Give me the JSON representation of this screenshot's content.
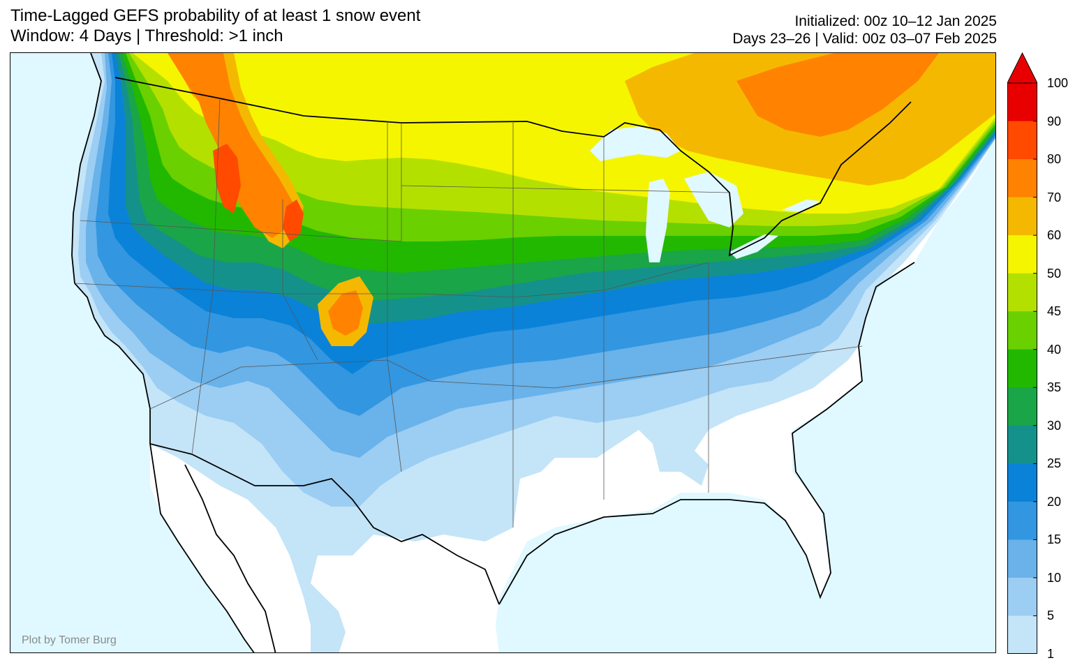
{
  "title": {
    "line1": "Time-Lagged GEFS probability of at least 1 snow event",
    "line2": "Window: 4 Days | Threshold: >1 inch"
  },
  "info": {
    "line1": "Initialized: 00z 10–12 Jan 2025",
    "line2": "Days 23–26 | Valid: 00z 03–07 Feb 2025"
  },
  "credit": "Plot by Tomer Burg",
  "legend": {
    "ticks": [
      "100",
      "90",
      "80",
      "70",
      "60",
      "50",
      "45",
      "40",
      "35",
      "30",
      "25",
      "20",
      "15",
      "10",
      "5",
      "1"
    ],
    "colors_top_to_bottom": [
      "#e80000",
      "#ff4a00",
      "#ff8200",
      "#f5b800",
      "#f5f500",
      "#b4e000",
      "#6ad000",
      "#22b800",
      "#1aa548",
      "#15918b",
      "#0a82d8",
      "#3296e0",
      "#69b2ea",
      "#9ccdf2",
      "#c4e4f8"
    ],
    "extend_color": "#e80000"
  },
  "colors": {
    "ocean": "#e0f8ff",
    "land_no_snow": "#ffffff",
    "lakes": "#e0f8ff"
  }
}
